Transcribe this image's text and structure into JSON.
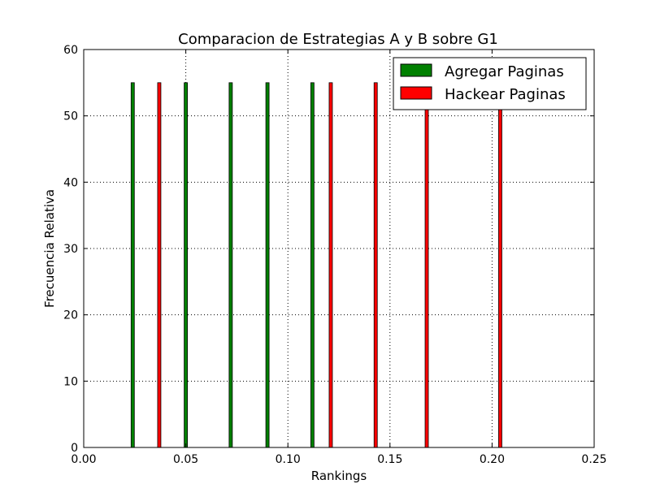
{
  "chart_data": {
    "type": "bar",
    "title": "Comparacion de Estrategias A y B sobre G1",
    "xlabel": "Rankings",
    "ylabel": "Frecuencia Relativa",
    "xlim": [
      0.0,
      0.25
    ],
    "ylim": [
      0,
      60
    ],
    "xticks": [
      "0.00",
      "0.05",
      "0.10",
      "0.15",
      "0.20",
      "0.25"
    ],
    "yticks": [
      "0",
      "10",
      "20",
      "30",
      "40",
      "50",
      "60"
    ],
    "grid": true,
    "legend_position": "top-right",
    "series": [
      {
        "name": "Agregar Paginas",
        "color": "#008000",
        "x": [
          0.024,
          0.05,
          0.072,
          0.09,
          0.112
        ],
        "values": [
          55,
          55,
          55,
          55,
          55
        ]
      },
      {
        "name": "Hackear Paginas",
        "color": "#ff0000",
        "x": [
          0.037,
          0.121,
          0.143,
          0.168,
          0.204
        ],
        "values": [
          55,
          55,
          55,
          55,
          55
        ]
      }
    ]
  }
}
